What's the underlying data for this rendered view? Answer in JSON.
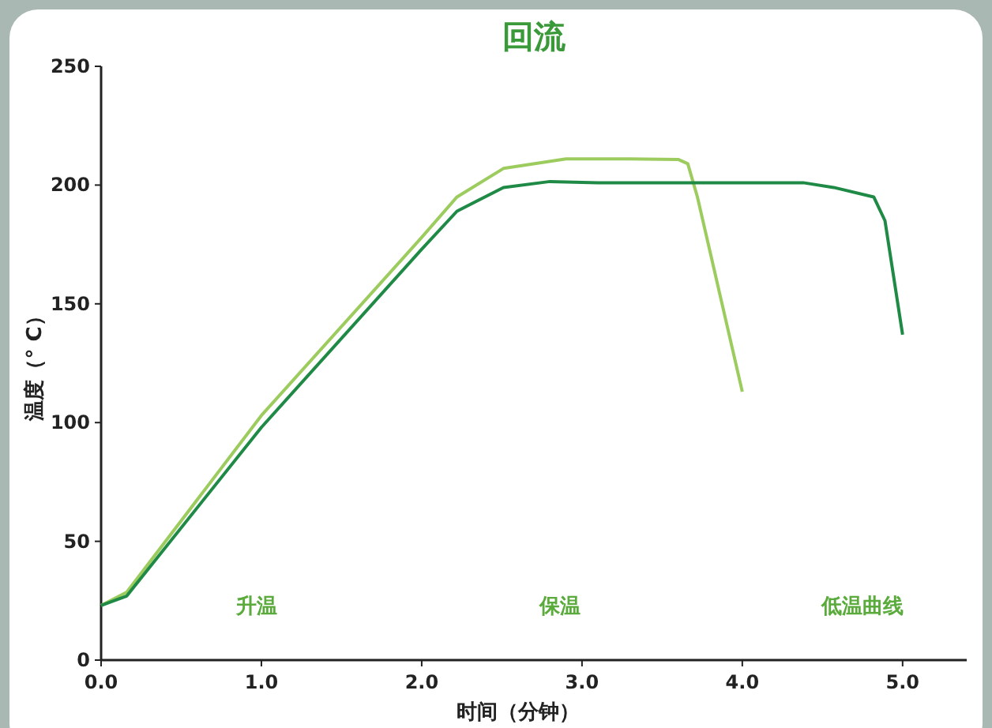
{
  "chart_data": {
    "type": "line",
    "title": "回流",
    "xlabel": "时间（分钟）",
    "ylabel": "温度（° C）",
    "xlim": [
      0,
      5.4
    ],
    "ylim": [
      0,
      250
    ],
    "xticks": [
      {
        "value": 0,
        "label": "0.0"
      },
      {
        "value": 1,
        "label": "1.0"
      },
      {
        "value": 2,
        "label": "2.0"
      },
      {
        "value": 3,
        "label": "3.0"
      },
      {
        "value": 4,
        "label": "4.0"
      },
      {
        "value": 5,
        "label": "5.0"
      }
    ],
    "yticks": [
      0,
      50,
      100,
      150,
      200,
      250
    ],
    "grid": false,
    "marker": "none",
    "line_style": "solid",
    "series": [
      {
        "color": "#9ccb5e",
        "x": [
          0,
          0.16,
          1.0,
          2.0,
          2.22,
          2.51,
          2.9,
          3.3,
          3.6,
          3.66,
          3.72,
          4.0
        ],
        "values": [
          23,
          28.6,
          103,
          178,
          195,
          207,
          211,
          211,
          210.8,
          209,
          195,
          113
        ]
      },
      {
        "color": "#1f8a45",
        "x": [
          0,
          0.16,
          1.0,
          2.0,
          2.22,
          2.51,
          2.8,
          3.1,
          4.0,
          4.38,
          4.57,
          4.82,
          4.89,
          5.0
        ],
        "values": [
          23,
          27,
          98,
          173,
          189,
          199,
          201.5,
          201,
          201,
          201,
          199,
          195,
          185,
          137
        ]
      }
    ],
    "annotations": [
      "升温",
      "保温",
      "低温曲线"
    ]
  }
}
